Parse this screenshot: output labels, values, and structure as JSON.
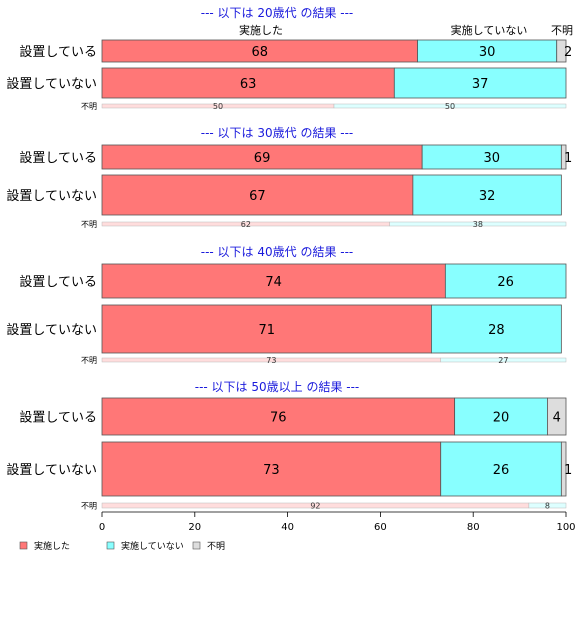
{
  "chart_data": {
    "type": "bar",
    "orientation": "horizontal",
    "stacked": "percent",
    "xlim": [
      0,
      100
    ],
    "xticks": [
      0,
      20,
      40,
      60,
      80,
      100
    ],
    "series_names": [
      "実施した",
      "実施していない",
      "不明"
    ],
    "colors": [
      "#ff7777",
      "#88ffff",
      "#dddddd"
    ],
    "column_headers": [
      "実施した",
      "実施していない",
      "不明"
    ],
    "legend": {
      "position": "bottom-left",
      "items": [
        {
          "label": "実施した",
          "color": "#ff7777"
        },
        {
          "label": "実施していない",
          "color": "#88ffff"
        },
        {
          "label": "不明",
          "color": "#dddddd"
        }
      ]
    },
    "panels": [
      {
        "title": "--- 以下は 20歳代 の結果 ---",
        "rows": [
          {
            "label": "設置している",
            "values": [
              68,
              30,
              2
            ],
            "size": "large"
          },
          {
            "label": "設置していない",
            "values": [
              63,
              37,
              0
            ],
            "size": "large"
          },
          {
            "label": "不明",
            "values": [
              50,
              50,
              0
            ],
            "size": "small"
          }
        ]
      },
      {
        "title": "--- 以下は 30歳代 の結果 ---",
        "rows": [
          {
            "label": "設置している",
            "values": [
              69,
              30,
              1
            ],
            "size": "large"
          },
          {
            "label": "設置していない",
            "values": [
              67,
              32,
              0
            ],
            "size": "large"
          },
          {
            "label": "不明",
            "values": [
              62,
              38,
              0
            ],
            "size": "small"
          }
        ]
      },
      {
        "title": "--- 以下は 40歳代 の結果 ---",
        "rows": [
          {
            "label": "設置している",
            "values": [
              74,
              26,
              0
            ],
            "size": "large"
          },
          {
            "label": "設置していない",
            "values": [
              71,
              28,
              0
            ],
            "size": "large"
          },
          {
            "label": "不明",
            "values": [
              73,
              27,
              0
            ],
            "size": "small"
          }
        ]
      },
      {
        "title": "--- 以下は 50歳以上 の結果 ---",
        "rows": [
          {
            "label": "設置している",
            "values": [
              76,
              20,
              4
            ],
            "size": "large"
          },
          {
            "label": "設置していない",
            "values": [
              73,
              26,
              1
            ],
            "size": "large"
          },
          {
            "label": "不明",
            "values": [
              92,
              8,
              0
            ],
            "size": "small"
          }
        ]
      }
    ]
  }
}
